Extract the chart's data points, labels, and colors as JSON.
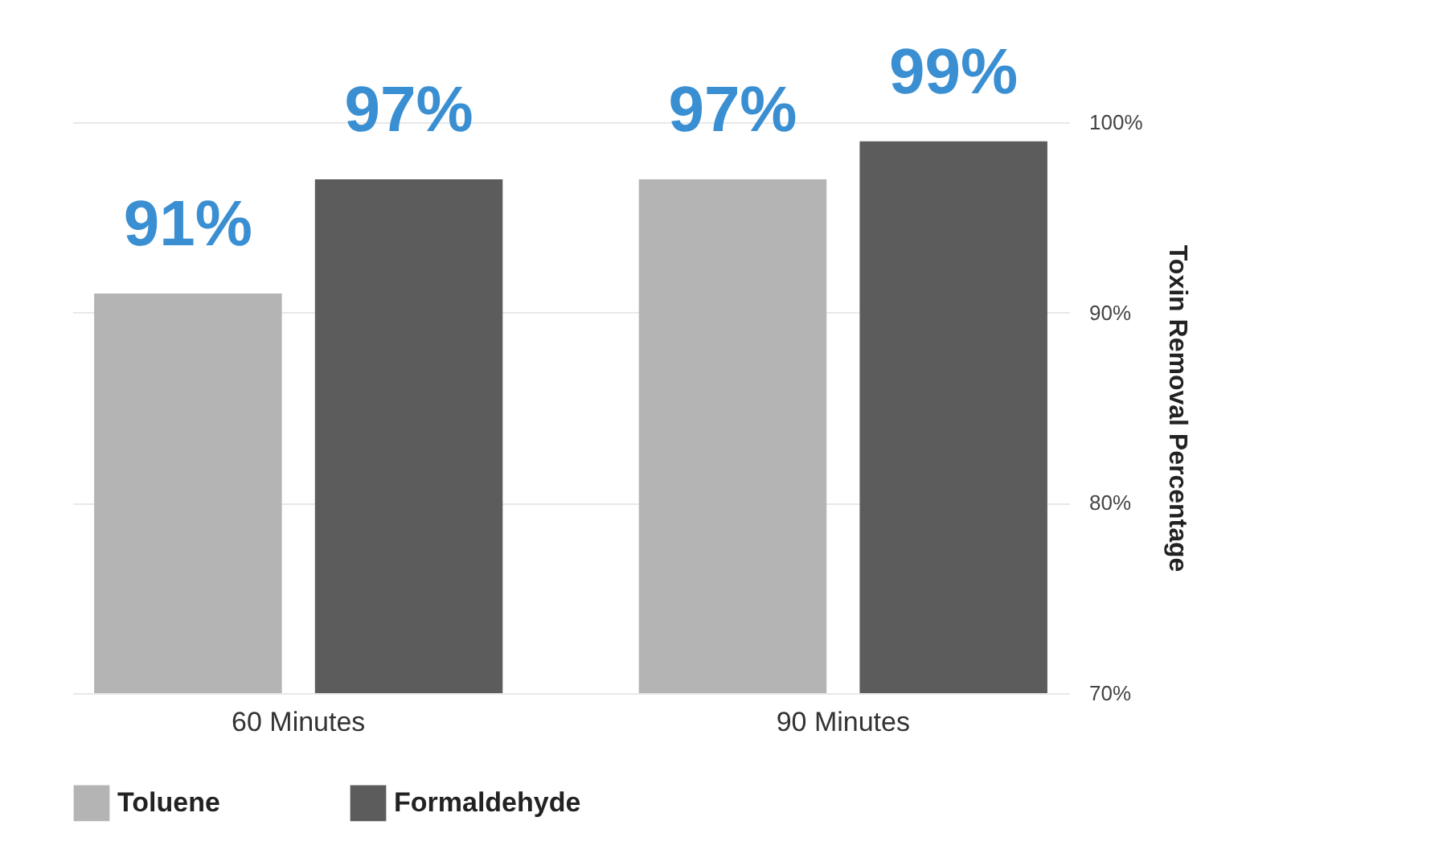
{
  "chart_data": {
    "type": "bar",
    "ylabel": "Toxin Removal Percentage",
    "categories": [
      "60 Minutes",
      "90 Minutes"
    ],
    "series": [
      {
        "name": "Toluene",
        "color": "#b4b4b4",
        "values": [
          91,
          97
        ],
        "value_labels": [
          "91%",
          "97%"
        ]
      },
      {
        "name": "Formaldehyde",
        "color": "#5c5c5c",
        "values": [
          97,
          99
        ],
        "value_labels": [
          "97%",
          "99%"
        ]
      }
    ],
    "ylim": [
      70,
      100
    ],
    "yticks": [
      {
        "value": 70,
        "label": "70%"
      },
      {
        "value": 80,
        "label": "80%"
      },
      {
        "value": 90,
        "label": "90%"
      },
      {
        "value": 100,
        "label": "100%"
      }
    ],
    "grid": "y",
    "legend": "bottom"
  }
}
